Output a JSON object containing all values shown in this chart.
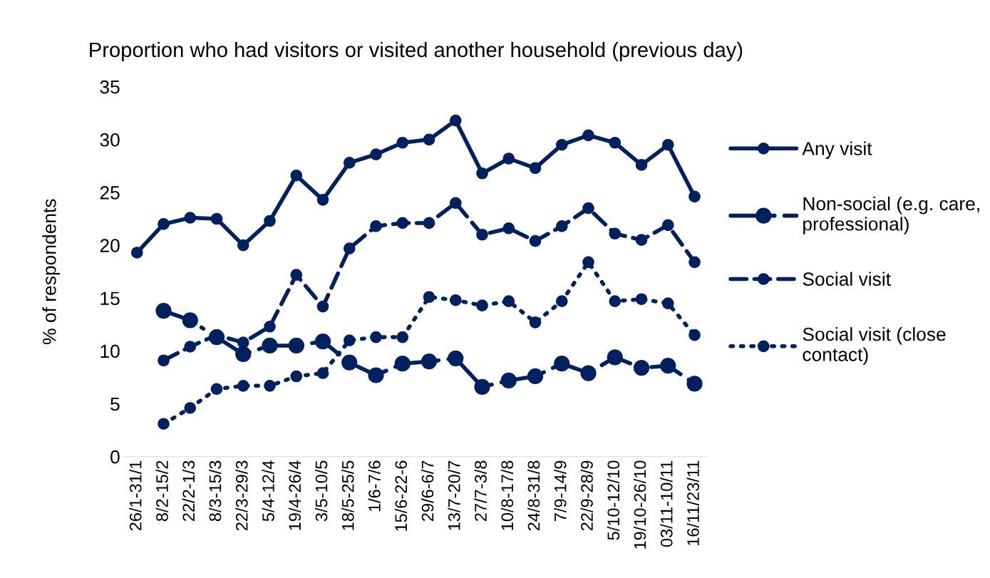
{
  "chart_data": {
    "type": "line",
    "title": "Proportion who had visitors or visited another household (previous day)",
    "ylabel": "% of respondents",
    "categories": [
      "26/1-31/1",
      "8/2-15/2",
      "22/2-1/3",
      "8/3-15/3",
      "22/3-29/3",
      "5/4-12/4",
      "19/4-26/4",
      "3/5-10/5",
      "18/5-25/5",
      "1/6-7/6",
      "15/6-22-6",
      "29/6-6/7",
      "13/7-20/7",
      "27/7-3/8",
      "10/8-17/8",
      "24/8-31/8",
      "7/9-14/9",
      "22/9-28/9",
      "5/10-12/10",
      "19/10-26/10",
      "03/11-10/11",
      "16/11/23/11"
    ],
    "series": [
      {
        "name": "Any visit",
        "color": "#002060",
        "line_style": "solid",
        "values": [
          19.3,
          22.0,
          22.6,
          22.5,
          20.0,
          22.3,
          26.6,
          24.3,
          27.8,
          28.6,
          29.7,
          30.0,
          31.8,
          26.8,
          28.2,
          27.3,
          29.5,
          30.4,
          29.7,
          27.6,
          29.5,
          24.6
        ]
      },
      {
        "name": "Non-social (e.g. care, professional)",
        "color": "#002060",
        "line_style": "dashdot",
        "values": [
          null,
          13.8,
          12.9,
          11.3,
          9.7,
          10.5,
          10.5,
          10.9,
          8.9,
          7.7,
          8.8,
          9.0,
          9.3,
          6.6,
          7.2,
          7.6,
          8.8,
          7.9,
          9.4,
          8.4,
          8.6,
          6.9
        ]
      },
      {
        "name": "Social visit",
        "color": "#002060",
        "line_style": "dashed",
        "values": [
          null,
          9.1,
          10.4,
          11.5,
          10.8,
          12.3,
          17.2,
          14.2,
          19.7,
          21.8,
          22.1,
          22.1,
          24.0,
          21.0,
          21.6,
          20.4,
          21.8,
          23.5,
          21.1,
          20.5,
          21.9,
          18.4
        ]
      },
      {
        "name": "Social visit (close contact)",
        "color": "#002060",
        "line_style": "dotted",
        "values": [
          null,
          3.1,
          4.6,
          6.4,
          6.7,
          6.7,
          7.6,
          7.9,
          11.0,
          11.3,
          11.3,
          15.1,
          14.8,
          14.3,
          14.7,
          12.7,
          14.7,
          18.4,
          14.7,
          14.9,
          14.5,
          11.5
        ]
      }
    ],
    "ylim": [
      0,
      35
    ],
    "yticks": [
      0,
      5,
      10,
      15,
      20,
      25,
      30,
      35
    ],
    "grid": false,
    "legend": "right",
    "marker": "circle"
  }
}
